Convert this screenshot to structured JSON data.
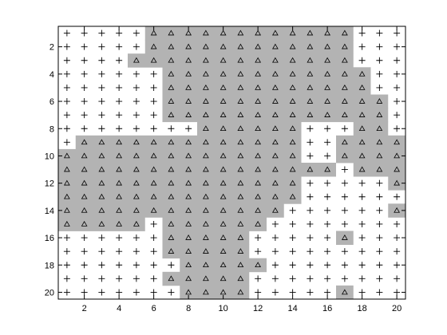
{
  "chart_data": {
    "type": "heatmap",
    "title": "",
    "xlabel": "",
    "ylabel": "",
    "xlim": [
      0.5,
      20.5
    ],
    "ylim": [
      0.5,
      20.5
    ],
    "y_reversed": true,
    "xticks": [
      2,
      4,
      6,
      8,
      10,
      12,
      14,
      16,
      18,
      20
    ],
    "yticks": [
      2,
      4,
      6,
      8,
      10,
      12,
      14,
      16,
      18,
      20
    ],
    "grid": false,
    "colors": {
      "class0_fill": "#ffffff",
      "class1_fill": "#b3b3b3",
      "marker": "#000000",
      "axes": "#000000"
    },
    "classes": [
      {
        "value": 0,
        "marker": "plus"
      },
      {
        "value": 1,
        "marker": "triangle"
      }
    ],
    "rows": [
      "00000111111111111000",
      "00000111111111111000",
      "00001111111111111000",
      "00000011111111111100",
      "00000011111111111100",
      "00000011111111111110",
      "00000011111111111110",
      "00000000111111000110",
      "01111111111111001111",
      "11111111111111001111",
      "11111111111111110111",
      "11111111111111000001",
      "11111111111111000000",
      "11111111111110000001",
      "11111011111100000000",
      "00000011111000001000",
      "00000011111000000000",
      "00000001111100000000",
      "00000011111000000000",
      "00000001111000001000"
    ]
  }
}
